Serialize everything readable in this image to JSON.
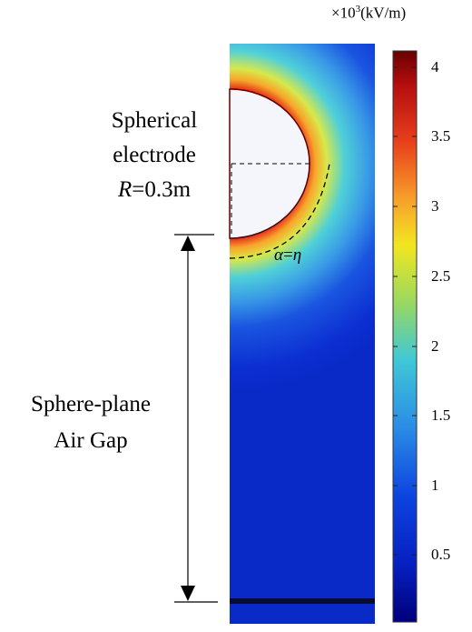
{
  "colorbar": {
    "unit_prefix": "×10",
    "unit_exp": "3",
    "unit": "(kV/m)",
    "ticks": [
      "4",
      "3.5",
      "3",
      "2.5",
      "2",
      "1.5",
      "1",
      "0.5"
    ],
    "colors": [
      "#7f0000",
      "#d61b10",
      "#f5821e",
      "#f3e81a",
      "#8fd46a",
      "#43c6d8",
      "#1f7fe0",
      "#0a2fd9",
      "#00007a"
    ]
  },
  "labels": {
    "electrode": [
      "Spherical",
      "electrode"
    ],
    "radius_var": "R",
    "radius_val": "=0.3m",
    "gap": [
      "Sphere-plane",
      "Air Gap"
    ],
    "angle_a": "α",
    "angle_eq": "=",
    "angle_b": "η"
  }
}
